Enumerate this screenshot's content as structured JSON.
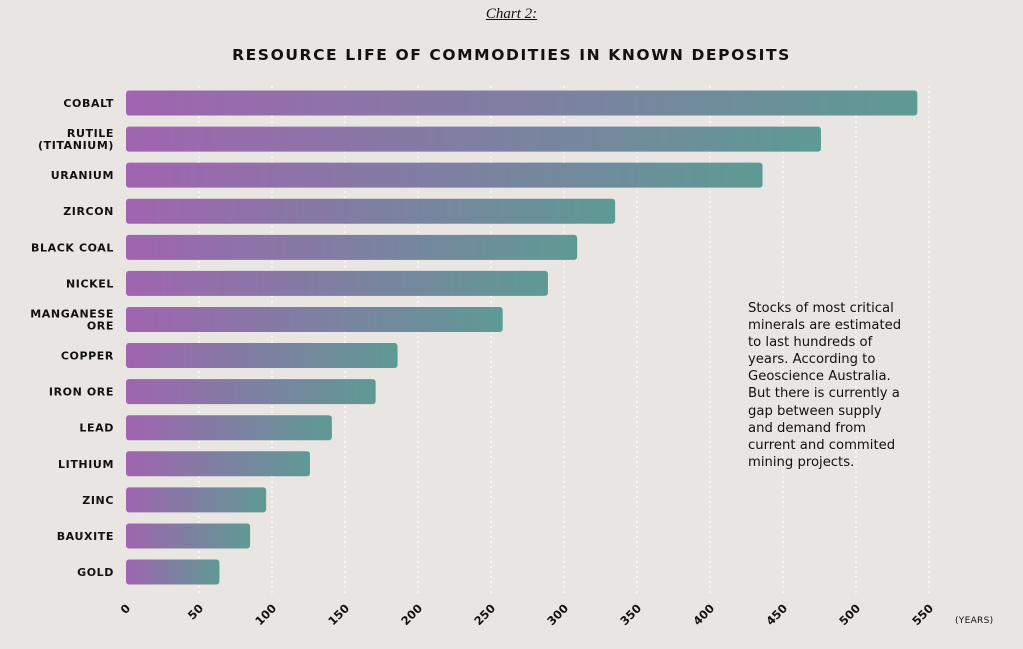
{
  "header": {
    "subtitle": "Chart 2:",
    "title": "RESOURCE LIFE OF COMMODITIES IN KNOWN DEPOSITS"
  },
  "note": "Stocks of most critical minerals are estimated to last hundreds of years. According to Geoscience Australia. But there is currently a gap between supply and demand from current and commited mining projects.",
  "colors": {
    "background": "#e8e5e2",
    "bar_start": "#a064b0",
    "bar_end": "#5e9a94",
    "grid": "#ffffff"
  },
  "chart_data": {
    "type": "bar",
    "orientation": "horizontal",
    "title": "RESOURCE LIFE OF COMMODITIES IN KNOWN DEPOSITS",
    "subtitle": "Chart 2:",
    "xlabel": "(YEARS)",
    "ylabel": "",
    "xlim": [
      0,
      550
    ],
    "xticks": [
      0,
      50,
      100,
      150,
      200,
      250,
      300,
      350,
      400,
      450,
      500,
      550
    ],
    "grid": "vertical dotted",
    "categories": [
      [
        "COBALT"
      ],
      [
        "RUTILE",
        "(TITANIUM)"
      ],
      [
        "URANIUM"
      ],
      [
        "ZIRCON"
      ],
      [
        "BLACK COAL"
      ],
      [
        "NICKEL"
      ],
      [
        "MANGANESE",
        "ORE"
      ],
      [
        "COPPER"
      ],
      [
        "IRON ORE"
      ],
      [
        "LEAD"
      ],
      [
        "LITHIUM"
      ],
      [
        "ZINC"
      ],
      [
        "BAUXITE"
      ],
      [
        "GOLD"
      ]
    ],
    "values": [
      542,
      476,
      436,
      335,
      309,
      289,
      258,
      186,
      171,
      141,
      126,
      96,
      85,
      64
    ]
  }
}
